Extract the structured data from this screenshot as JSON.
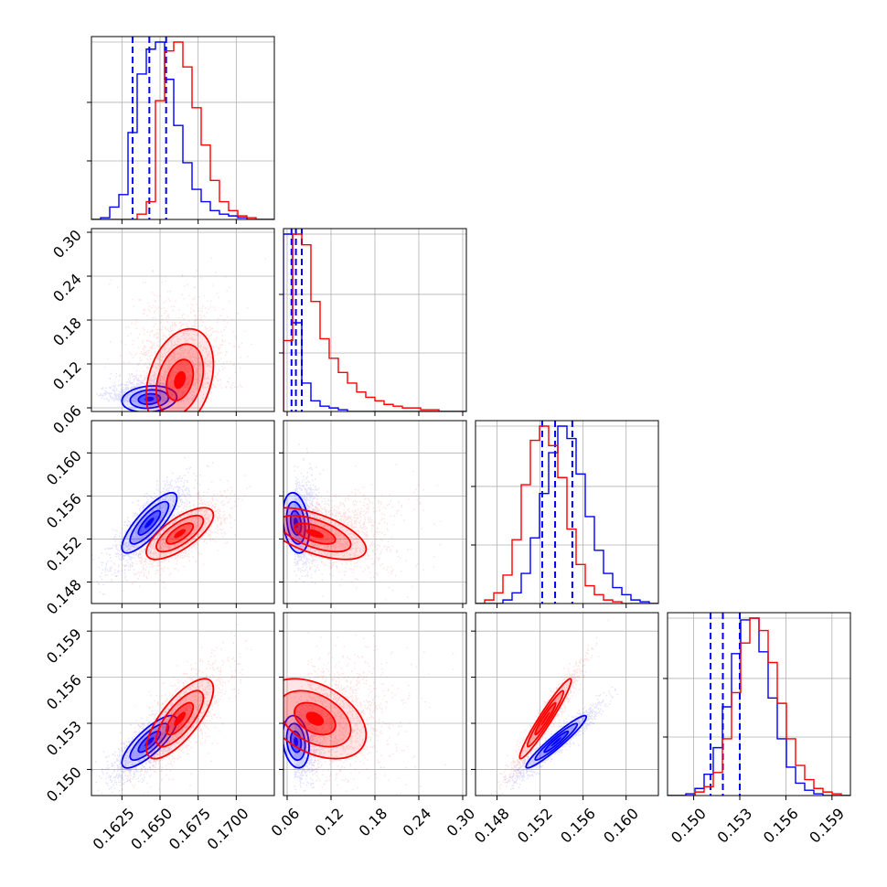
{
  "chart_data": {
    "type": "corner",
    "title": "",
    "grid": true,
    "colors": {
      "series_a": "#0000ff",
      "series_b": "#ff0000"
    },
    "parameters": [
      {
        "range": [
          0.1605,
          0.1725
        ],
        "ticks": [
          0.1625,
          0.165,
          0.1675,
          0.17
        ],
        "tick_labels": [
          "0.1625",
          "0.1650",
          "0.1675",
          "0.1700"
        ]
      },
      {
        "range": [
          0.055,
          0.305
        ],
        "ticks": [
          0.06,
          0.12,
          0.18,
          0.24,
          0.3
        ],
        "tick_labels": [
          "0.06",
          "0.12",
          "0.18",
          "0.24",
          "0.30"
        ]
      },
      {
        "range": [
          0.146,
          0.163
        ],
        "ticks": [
          0.148,
          0.152,
          0.156,
          0.16
        ],
        "tick_labels": [
          "0.148",
          "0.152",
          "0.156",
          "0.160"
        ]
      },
      {
        "range": [
          0.1483,
          0.1602
        ],
        "ticks": [
          0.15,
          0.153,
          0.156,
          0.159
        ],
        "tick_labels": [
          "0.150",
          "0.153",
          "0.156",
          "0.159"
        ]
      }
    ],
    "series": [
      {
        "color": "#0000ff",
        "means": [
          0.1643,
          0.072,
          0.1535,
          0.1518
        ],
        "sds": [
          0.0009,
          0.009,
          0.0014,
          0.00085
        ],
        "correlations": [
          [
            1,
            0.15,
            0.82,
            0.8
          ],
          [
            0.15,
            1,
            -0.25,
            -0.2
          ],
          [
            0.82,
            -0.25,
            1,
            0.95
          ],
          [
            0.8,
            -0.2,
            0.95,
            1
          ]
        ],
        "quantile_lines": [
          [
            0.1632,
            0.1643,
            0.1654
          ],
          [
            0.066,
            0.072,
            0.08
          ],
          [
            0.1522,
            0.1534,
            0.155
          ],
          [
            0.1511,
            0.1519,
            0.153
          ]
        ],
        "hist": [
          [
            0.0,
            0.01,
            0.07,
            0.14,
            0.49,
            0.82,
            0.96,
            1.0,
            0.79,
            0.53,
            0.32,
            0.17,
            0.1,
            0.05,
            0.03,
            0.02,
            0.01,
            0.0,
            0.0,
            0.0
          ],
          [
            1.0,
            0.5,
            0.16,
            0.06,
            0.03,
            0.02,
            0.01,
            0.0,
            0.0,
            0.0,
            0.0,
            0.0,
            0.0,
            0.0,
            0.0,
            0.0,
            0.0,
            0.0,
            0.0,
            0.0
          ],
          [
            0.0,
            0.0,
            0.0,
            0.02,
            0.06,
            0.17,
            0.37,
            0.62,
            0.85,
            1.0,
            0.93,
            0.73,
            0.49,
            0.3,
            0.17,
            0.09,
            0.05,
            0.02,
            0.01,
            0.0
          ],
          [
            0.0,
            0.0,
            0.01,
            0.04,
            0.12,
            0.27,
            0.5,
            0.8,
            0.99,
            1.0,
            0.81,
            0.55,
            0.32,
            0.16,
            0.07,
            0.03,
            0.01,
            0.0,
            0.0,
            0.0
          ]
        ]
      },
      {
        "color": "#ff0000",
        "means": [
          0.1663,
          0.098,
          0.1525,
          0.1533
        ],
        "sds": [
          0.0011,
          0.035,
          0.0012,
          0.0013
        ],
        "correlations": [
          [
            1,
            0.3,
            0.72,
            0.74
          ],
          [
            0.3,
            1,
            -0.6,
            -0.4
          ],
          [
            0.72,
            -0.6,
            1,
            0.96
          ],
          [
            0.74,
            -0.4,
            0.96,
            1
          ]
        ],
        "quantile_lines": [],
        "hist": [
          [
            0.0,
            0.0,
            0.0,
            0.0,
            0.0,
            0.03,
            0.1,
            0.67,
            0.95,
            1.0,
            0.86,
            0.63,
            0.42,
            0.22,
            0.1,
            0.05,
            0.02,
            0.01,
            0.0,
            0.0
          ],
          [
            0.4,
            1.0,
            0.94,
            0.62,
            0.41,
            0.3,
            0.22,
            0.16,
            0.11,
            0.08,
            0.06,
            0.04,
            0.03,
            0.02,
            0.02,
            0.01,
            0.01,
            0.0,
            0.0,
            0.0
          ],
          [
            0.0,
            0.02,
            0.06,
            0.16,
            0.36,
            0.67,
            0.92,
            1.0,
            0.89,
            0.71,
            0.42,
            0.22,
            0.1,
            0.05,
            0.02,
            0.01,
            0.0,
            0.0,
            0.0,
            0.0
          ],
          [
            0.0,
            0.0,
            0.0,
            0.02,
            0.05,
            0.13,
            0.32,
            0.58,
            0.86,
            1.0,
            0.93,
            0.75,
            0.52,
            0.32,
            0.17,
            0.09,
            0.04,
            0.02,
            0.01,
            0.0
          ]
        ]
      }
    ]
  }
}
